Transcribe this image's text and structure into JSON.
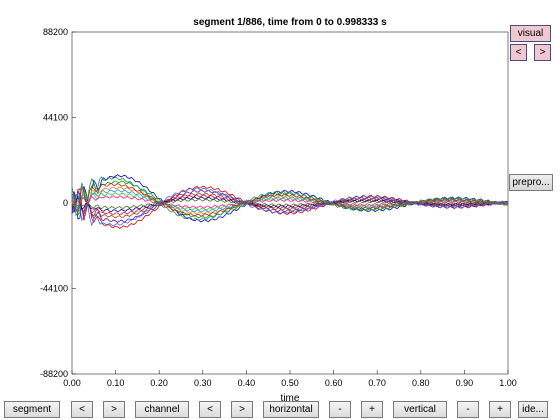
{
  "title": "segment 1/886, time from 0 to 0.998333 s",
  "xlabel": "time",
  "buttons": {
    "visual": "visual",
    "prev_small": "<",
    "next_small": ">",
    "preproc": "prepro...",
    "segment": "segment",
    "seg_prev": "<",
    "seg_next": ">",
    "channel": "channel",
    "ch_prev": "<",
    "ch_next": ">",
    "horizontal": "horizontal",
    "h_minus": "-",
    "h_plus": "+",
    "vertical": "vertical",
    "v_minus": "-",
    "v_plus": "+",
    "ide": "ide..."
  },
  "chart_data": {
    "type": "line",
    "title": "segment 1/886, time from 0 to 0.998333 s",
    "xlabel": "time",
    "ylabel": "",
    "xlim": [
      0,
      1
    ],
    "ylim": [
      -88200,
      88200
    ],
    "xticks": [
      "0.00",
      "0.10",
      "0.20",
      "0.30",
      "0.40",
      "0.50",
      "0.60",
      "0.70",
      "0.80",
      "0.90",
      "1.00"
    ],
    "yticks": [
      "88200",
      "44100",
      "0",
      "-44100",
      "-88200"
    ],
    "grid": false,
    "series_colors": [
      "#0000cc",
      "#cc0000",
      "#00aa00",
      "#6a0dad",
      "#ff7f00",
      "#8b4513",
      "#1e90ff",
      "#dc143c",
      "#32cd32",
      "#000080",
      "#ff1493",
      "#556b2f",
      "#b22222",
      "#4169e1",
      "#2e8b57"
    ],
    "series": [
      {
        "amp": 18000,
        "phase": 0.0
      },
      {
        "amp": -16000,
        "phase": 0.1
      },
      {
        "amp": 14000,
        "phase": 0.2
      },
      {
        "amp": -12000,
        "phase": 0.3
      },
      {
        "amp": 10000,
        "phase": 0.4
      },
      {
        "amp": -9000,
        "phase": 0.5
      },
      {
        "amp": 8000,
        "phase": 0.6
      },
      {
        "amp": -7000,
        "phase": 0.7
      },
      {
        "amp": 6000,
        "phase": 0.8
      },
      {
        "amp": -5000,
        "phase": 0.9
      },
      {
        "amp": 4000,
        "phase": 1.0
      },
      {
        "amp": -3000,
        "phase": 1.1
      },
      {
        "amp": 12000,
        "phase": 1.2
      },
      {
        "amp": -14000,
        "phase": 1.3
      },
      {
        "amp": 16000,
        "phase": 1.4
      }
    ]
  }
}
